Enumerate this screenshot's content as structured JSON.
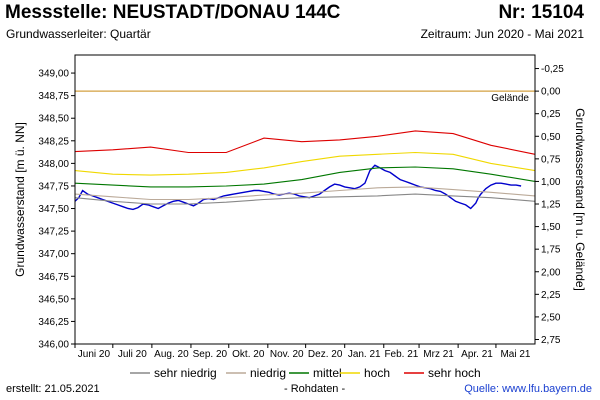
{
  "header": {
    "title": "Messstelle: NEUSTADT/DONAU 144C",
    "number": "Nr: 15104",
    "aquifer": "Grundwasserleiter: Quartär",
    "period": "Zeitraum: Jun 2020 - Mai 2021"
  },
  "footer": {
    "created": "erstellt:  21.05.2021",
    "raw": "- Rohdaten -",
    "source": "Quelle:  www.lfu.bayern.de"
  },
  "colors": {
    "fill": "#a8c8ee",
    "line": "#0000cc",
    "sehr_niedrig": "#888888",
    "niedrig": "#bbaa99",
    "mittel": "#007700",
    "hoch": "#f0d800",
    "sehr_hoch": "#dd0000",
    "gelaende": "#d4a040"
  },
  "chart_data": {
    "type": "area",
    "title": "Messstelle: NEUSTADT/DONAU 144C",
    "ylabel": "Grundwasserstand [m ü. NN]",
    "y2label": "Grundwasserstand [m u. Gelände]",
    "ylim": [
      346.0,
      349.2
    ],
    "y_ticks": [
      "349,00",
      "348,75",
      "348,50",
      "348,25",
      "348,00",
      "347,75",
      "347,50",
      "347,25",
      "347,00",
      "346,75",
      "346,50",
      "346,25",
      "346,00"
    ],
    "y2_ticks": [
      "-0,25",
      "0,00",
      "0,25",
      "0,50",
      "0,75",
      "1,00",
      "1,25",
      "1,50",
      "1,75",
      "2,00",
      "2,25",
      "2,50",
      "2,75"
    ],
    "gelaende_level": 348.8,
    "gelaende_label": "Gelände",
    "x_months": [
      "Juni 20",
      "Juli 20",
      "Aug. 20",
      "Sep. 20",
      "Okt. 20",
      "Nov. 20",
      "Dez. 20",
      "Jan. 21",
      "Feb. 21",
      "Mrz 21",
      "Apr. 21",
      "Mai 21"
    ],
    "x_range_days": [
      0,
      365
    ],
    "series": [
      {
        "name": "Grundwasserstand",
        "x": [
          0,
          3,
          6,
          10,
          14,
          18,
          22,
          26,
          30,
          34,
          38,
          42,
          46,
          50,
          54,
          58,
          62,
          66,
          70,
          74,
          78,
          82,
          86,
          90,
          94,
          98,
          102,
          106,
          110,
          114,
          118,
          122,
          126,
          130,
          134,
          138,
          142,
          146,
          150,
          154,
          158,
          162,
          166,
          170,
          174,
          178,
          182,
          186,
          190,
          194,
          198,
          202,
          206,
          210,
          214,
          218,
          222,
          226,
          230,
          234,
          238,
          242,
          246,
          250,
          254,
          256,
          258,
          262,
          266,
          270,
          274,
          278,
          282,
          286,
          290,
          294,
          298,
          302,
          306,
          310,
          314,
          318,
          320,
          322,
          326,
          330,
          334,
          338,
          342,
          346,
          350,
          354
        ],
        "values": [
          347.58,
          347.62,
          347.7,
          347.66,
          347.64,
          347.62,
          347.6,
          347.58,
          347.56,
          347.54,
          347.52,
          347.5,
          347.49,
          347.51,
          347.55,
          347.54,
          347.52,
          347.5,
          347.53,
          347.56,
          347.58,
          347.59,
          347.57,
          347.55,
          347.53,
          347.56,
          347.6,
          347.61,
          347.6,
          347.62,
          347.64,
          347.65,
          347.66,
          347.67,
          347.68,
          347.69,
          347.7,
          347.7,
          347.69,
          347.68,
          347.66,
          347.65,
          347.66,
          347.67,
          347.66,
          347.64,
          347.63,
          347.62,
          347.64,
          347.66,
          347.7,
          347.74,
          347.77,
          347.76,
          347.74,
          347.73,
          347.72,
          347.74,
          347.78,
          347.92,
          347.98,
          347.95,
          347.92,
          347.9,
          347.86,
          347.84,
          347.82,
          347.8,
          347.78,
          347.76,
          347.74,
          347.73,
          347.72,
          347.7,
          347.69,
          347.66,
          347.62,
          347.58,
          347.56,
          347.54,
          347.5,
          347.56,
          347.62,
          347.66,
          347.72,
          347.76,
          347.78,
          347.78,
          347.77,
          347.76,
          347.76,
          347.75
        ]
      },
      {
        "name": "sehr niedrig",
        "x": [
          0,
          30,
          60,
          90,
          120,
          150,
          180,
          210,
          240,
          270,
          300,
          330,
          365
        ],
        "values": [
          347.62,
          347.58,
          347.55,
          347.55,
          347.57,
          347.6,
          347.62,
          347.63,
          347.64,
          347.66,
          347.64,
          347.62,
          347.58
        ]
      },
      {
        "name": "niedrig",
        "x": [
          0,
          30,
          60,
          90,
          120,
          150,
          180,
          210,
          240,
          270,
          300,
          330,
          365
        ],
        "values": [
          347.66,
          347.63,
          347.6,
          347.6,
          347.62,
          347.65,
          347.67,
          347.7,
          347.73,
          347.74,
          347.71,
          347.68,
          347.64
        ]
      },
      {
        "name": "mittel",
        "x": [
          0,
          30,
          60,
          90,
          120,
          150,
          180,
          210,
          240,
          270,
          300,
          330,
          365
        ],
        "values": [
          347.78,
          347.76,
          347.74,
          347.74,
          347.75,
          347.77,
          347.82,
          347.9,
          347.95,
          347.96,
          347.94,
          347.88,
          347.8
        ]
      },
      {
        "name": "hoch",
        "x": [
          0,
          30,
          60,
          90,
          120,
          150,
          180,
          210,
          240,
          270,
          300,
          330,
          365
        ],
        "values": [
          347.92,
          347.88,
          347.87,
          347.88,
          347.9,
          347.95,
          348.02,
          348.08,
          348.1,
          348.12,
          348.1,
          348.0,
          347.92
        ]
      },
      {
        "name": "sehr hoch",
        "x": [
          0,
          30,
          60,
          90,
          120,
          150,
          180,
          210,
          240,
          270,
          300,
          330,
          365
        ],
        "values": [
          348.13,
          348.15,
          348.18,
          348.12,
          348.12,
          348.28,
          348.24,
          348.26,
          348.3,
          348.36,
          348.33,
          348.2,
          348.1
        ]
      }
    ],
    "legend": [
      "sehr niedrig",
      "niedrig",
      "mittel",
      "hoch",
      "sehr hoch"
    ],
    "legend_position": "bottom"
  }
}
